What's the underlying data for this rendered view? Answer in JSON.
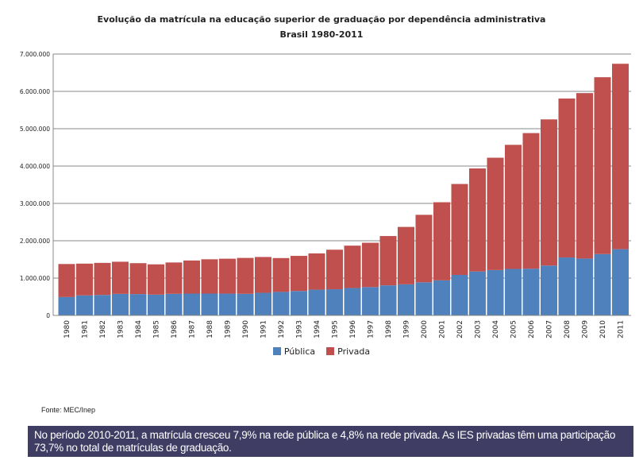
{
  "chart_data": {
    "type": "bar",
    "stacked": true,
    "title": "Evolução da matrícula na educação superior de graduação por dependência administrativa",
    "subtitle": "Brasil 1980-2011",
    "xlabel": "",
    "ylabel": "",
    "ylim": [
      0,
      7000000
    ],
    "yticks": [
      0,
      1000000,
      2000000,
      3000000,
      4000000,
      5000000,
      6000000,
      7000000
    ],
    "ytick_labels": [
      "0",
      "1.000.000",
      "2.000.000",
      "3.000.000",
      "4.000.000",
      "5.000.000",
      "6.000.000",
      "7.000.000"
    ],
    "grid": true,
    "legend_position": "bottom",
    "categories": [
      "1980",
      "1981",
      "1982",
      "1983",
      "1984",
      "1985",
      "1986",
      "1987",
      "1988",
      "1989",
      "1990",
      "1991",
      "1992",
      "1993",
      "1994",
      "1995",
      "1996",
      "1997",
      "1998",
      "1999",
      "2000",
      "2001",
      "2002",
      "2003",
      "2004",
      "2005",
      "2006",
      "2007",
      "2008",
      "2009",
      "2010",
      "2011"
    ],
    "series": [
      {
        "name": "Pública",
        "color": "#4f81bd",
        "values": [
          492000,
          536000,
          548000,
          577000,
          572000,
          557000,
          578000,
          585000,
          585000,
          584000,
          579000,
          606000,
          630000,
          654000,
          690000,
          701000,
          735000,
          759000,
          805000,
          832000,
          887000,
          939000,
          1085000,
          1177000,
          1215000,
          1245000,
          1251000,
          1335000,
          1552000,
          1523000,
          1643000,
          1774000
        ]
      },
      {
        "name": "Privada",
        "color": "#c0504d",
        "values": [
          885000,
          851000,
          859000,
          861000,
          827000,
          811000,
          840000,
          886000,
          919000,
          935000,
          961000,
          959000,
          906000,
          941000,
          971000,
          1059000,
          1134000,
          1187000,
          1321000,
          1538000,
          1807000,
          2092000,
          2435000,
          2759000,
          3008000,
          3323000,
          3632000,
          3915000,
          4256000,
          4431000,
          4736000,
          4965000
        ]
      }
    ]
  },
  "source": "Fonte: MEC/Inep",
  "note": "No período 2010-2011, a matrícula cresceu 7,9% na rede pública e 4,8% na rede privada. As IES privadas têm uma participação 73,7% no total de matrículas de graduação."
}
